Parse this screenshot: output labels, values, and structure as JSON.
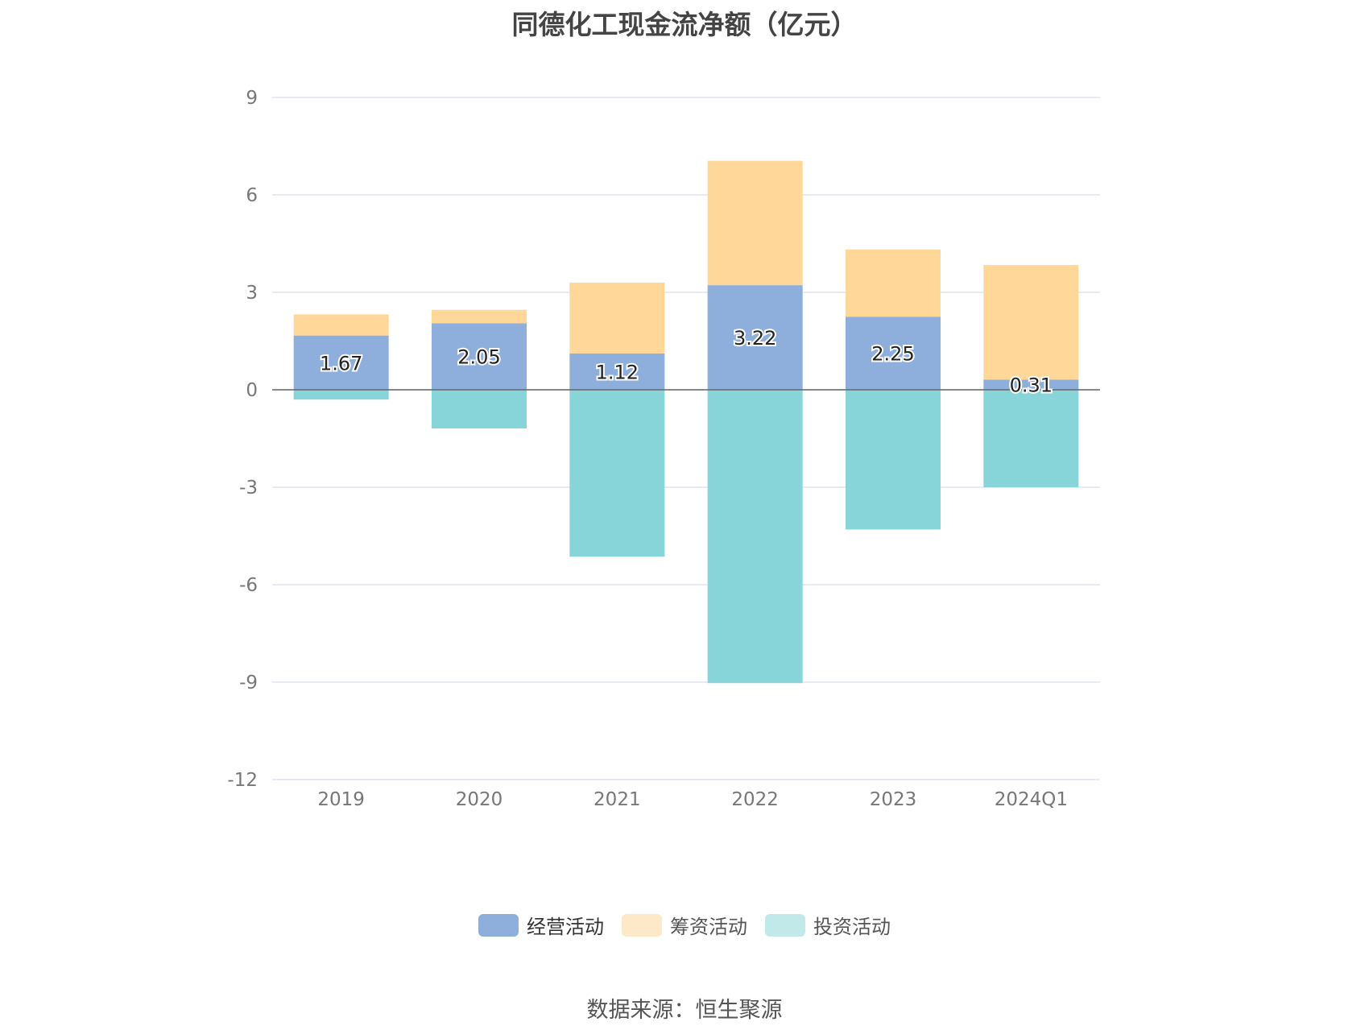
{
  "chart_data": {
    "type": "bar",
    "stacked": true,
    "title": "同德化工现金流净额（亿元）",
    "categories": [
      "2019",
      "2020",
      "2021",
      "2022",
      "2023",
      "2024Q1"
    ],
    "series": [
      {
        "name": "经营活动",
        "color": "#8eaedb",
        "values": [
          1.67,
          2.05,
          1.12,
          3.22,
          2.25,
          0.31
        ],
        "labels_shown": true
      },
      {
        "name": "筹资活动",
        "color": "#ffd899",
        "legend_color": "#fde8c8",
        "values": [
          0.65,
          0.41,
          2.18,
          3.83,
          2.07,
          3.53
        ]
      },
      {
        "name": "投资活动",
        "color": "#87d5d8",
        "legend_color": "#c2e9ea",
        "values": [
          -0.3,
          -1.19,
          -5.14,
          -9.03,
          -4.3,
          -3.0
        ]
      }
    ],
    "ylim": [
      -12,
      9
    ],
    "yticks": [
      9,
      6,
      3,
      0,
      -3,
      -6,
      -9,
      -12
    ],
    "grid": true,
    "legend_position": "bottom"
  },
  "source": "数据来源：恒生聚源"
}
